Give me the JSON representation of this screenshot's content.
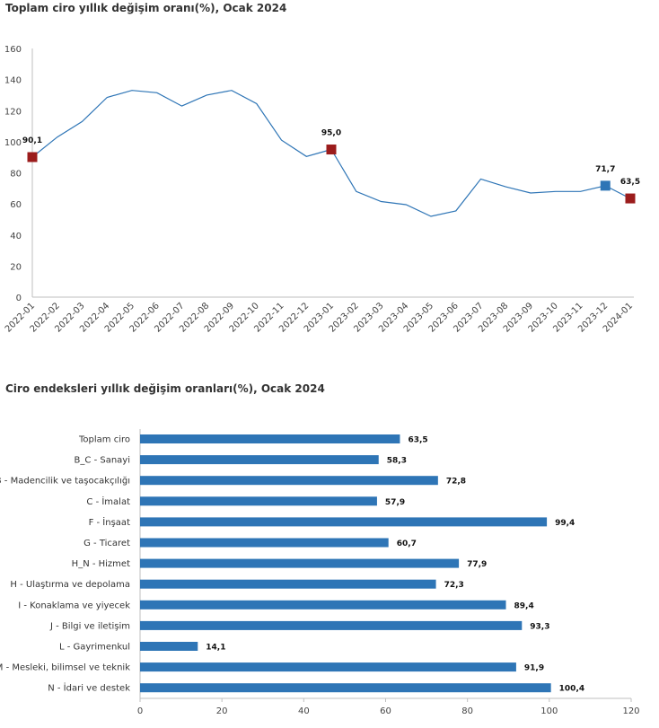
{
  "chart_data": [
    {
      "type": "line",
      "title": "Toplam ciro yıllık değişim oranı(%), Ocak 2024",
      "xlabel": "",
      "ylabel": "",
      "ylim": [
        0,
        160
      ],
      "yticks": [
        0,
        20,
        40,
        60,
        80,
        100,
        120,
        140,
        160
      ],
      "grid": false,
      "line_color": "#2e75b6",
      "x": [
        "2022-01",
        "2022-02",
        "2022-03",
        "2022-04",
        "2022-05",
        "2022-06",
        "2022-07",
        "2022-08",
        "2022-09",
        "2022-10",
        "2022-11",
        "2022-12",
        "2023-01",
        "2023-02",
        "2023-03",
        "2023-04",
        "2023-05",
        "2023-06",
        "2023-07",
        "2023-08",
        "2023-09",
        "2023-10",
        "2023-11",
        "2023-12",
        "2024-01"
      ],
      "series": [
        {
          "name": "Toplam ciro",
          "values": [
            90.1,
            103,
            113,
            128.5,
            133,
            131.5,
            123,
            130,
            133,
            124.5,
            101,
            90.5,
            95.0,
            68,
            61.5,
            59.5,
            52,
            55.5,
            76,
            71,
            67,
            68,
            68,
            71.7,
            63.5
          ]
        }
      ],
      "highlighted_points": [
        {
          "index": 0,
          "label": "90,1",
          "color": "#9b1c1c"
        },
        {
          "index": 12,
          "label": "95,0",
          "color": "#9b1c1c"
        },
        {
          "index": 23,
          "label": "71,7",
          "color": "#2e75b6"
        },
        {
          "index": 24,
          "label": "63,5",
          "color": "#9b1c1c"
        }
      ]
    },
    {
      "type": "bar",
      "orientation": "horizontal",
      "title": "Ciro endeksleri yıllık değişim oranları(%), Ocak 2024",
      "xlabel": "",
      "ylabel": "",
      "xlim": [
        0,
        120
      ],
      "xticks": [
        0,
        20,
        40,
        60,
        80,
        100,
        120
      ],
      "bar_color": "#2e75b6",
      "categories": [
        "Toplam ciro",
        "B_C - Sanayi",
        "B - Madencilik ve taşocakçılığı",
        "C - İmalat",
        "F - İnşaat",
        "G - Ticaret",
        "H_N - Hizmet",
        "H - Ulaştırma ve depolama",
        "I - Konaklama ve yiyecek",
        "J - Bilgi ve iletişim",
        "L - Gayrimenkul",
        "M - Mesleki, bilimsel ve teknik",
        "N - İdari ve destek"
      ],
      "values": [
        63.5,
        58.3,
        72.8,
        57.9,
        99.4,
        60.7,
        77.9,
        72.3,
        89.4,
        93.3,
        14.1,
        91.9,
        100.4
      ],
      "value_labels": [
        "63,5",
        "58,3",
        "72,8",
        "57,9",
        "99,4",
        "60,7",
        "77,9",
        "72,3",
        "89,4",
        "93,3",
        "14,1",
        "91,9",
        "100,4"
      ]
    }
  ]
}
